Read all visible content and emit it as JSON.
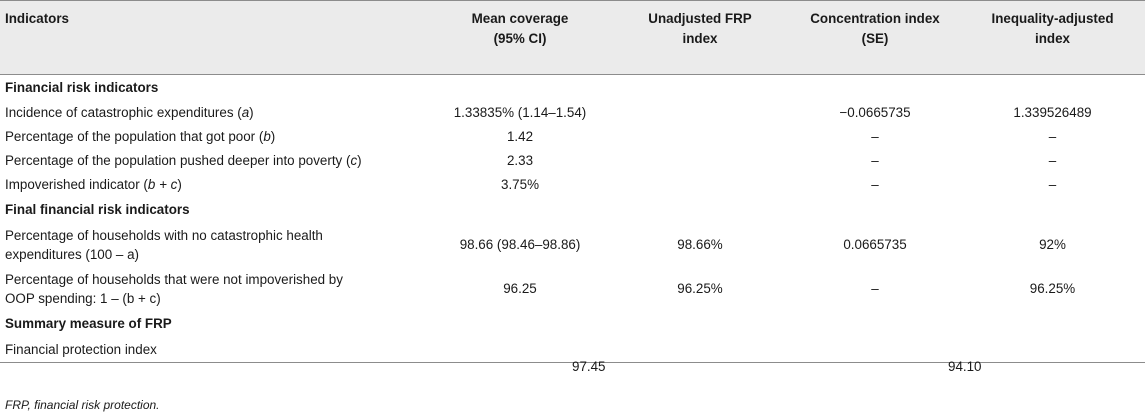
{
  "header": {
    "indicators": "Indicators",
    "mean_coverage_line1": "Mean coverage",
    "mean_coverage_line2": "(95% CI)",
    "unadjusted_line1": "Unadjusted FRP",
    "unadjusted_line2": "index",
    "concentration_line1": "Concentration index",
    "concentration_line2": "(SE)",
    "inequality_line1": "Inequality-adjusted",
    "inequality_line2": "index"
  },
  "sections": {
    "financial_risk": "Financial risk indicators",
    "final_financial_risk": "Final financial risk indicators",
    "summary": "Summary measure of FRP"
  },
  "rows": [
    {
      "label_pre": "Incidence of catastrophic expenditures (",
      "label_var": "a",
      "label_post": ")",
      "mean": "1.33835% (1.14–1.54)",
      "unadjusted": "",
      "concentration": "−0.0665735",
      "inequality": "1.339526489"
    },
    {
      "label_pre": "Percentage of the population that got poor (",
      "label_var": "b",
      "label_post": ")",
      "mean": "1.42",
      "unadjusted": "",
      "concentration": "–",
      "inequality": "–"
    },
    {
      "label_pre": "Percentage of the population pushed deeper into poverty (",
      "label_var": "c",
      "label_post": ")",
      "mean": "2.33",
      "unadjusted": "",
      "concentration": "–",
      "inequality": "–"
    },
    {
      "label_pre": "Impoverished indicator (",
      "label_var": "b + c",
      "label_post": ")",
      "mean": "3.75%",
      "unadjusted": "",
      "concentration": "–",
      "inequality": "–"
    }
  ],
  "final_rows": [
    {
      "line1": "Percentage of households with no catastrophic health",
      "line2": "expenditures (100 – a)",
      "mean": "98.66 (98.46–98.86)",
      "unadjusted": "98.66%",
      "concentration": "0.0665735",
      "inequality": "92%"
    },
    {
      "line1": "Percentage of households that were not impoverished by",
      "line2": "OOP spending: 1 – (b + c)",
      "mean": "96.25",
      "unadjusted": "96.25%",
      "concentration": "–",
      "inequality": "96.25%"
    }
  ],
  "summary_row": {
    "label": "Financial protection index",
    "value_left": "97.45",
    "value_right": "94.10"
  },
  "footnote": "FRP, financial risk protection."
}
